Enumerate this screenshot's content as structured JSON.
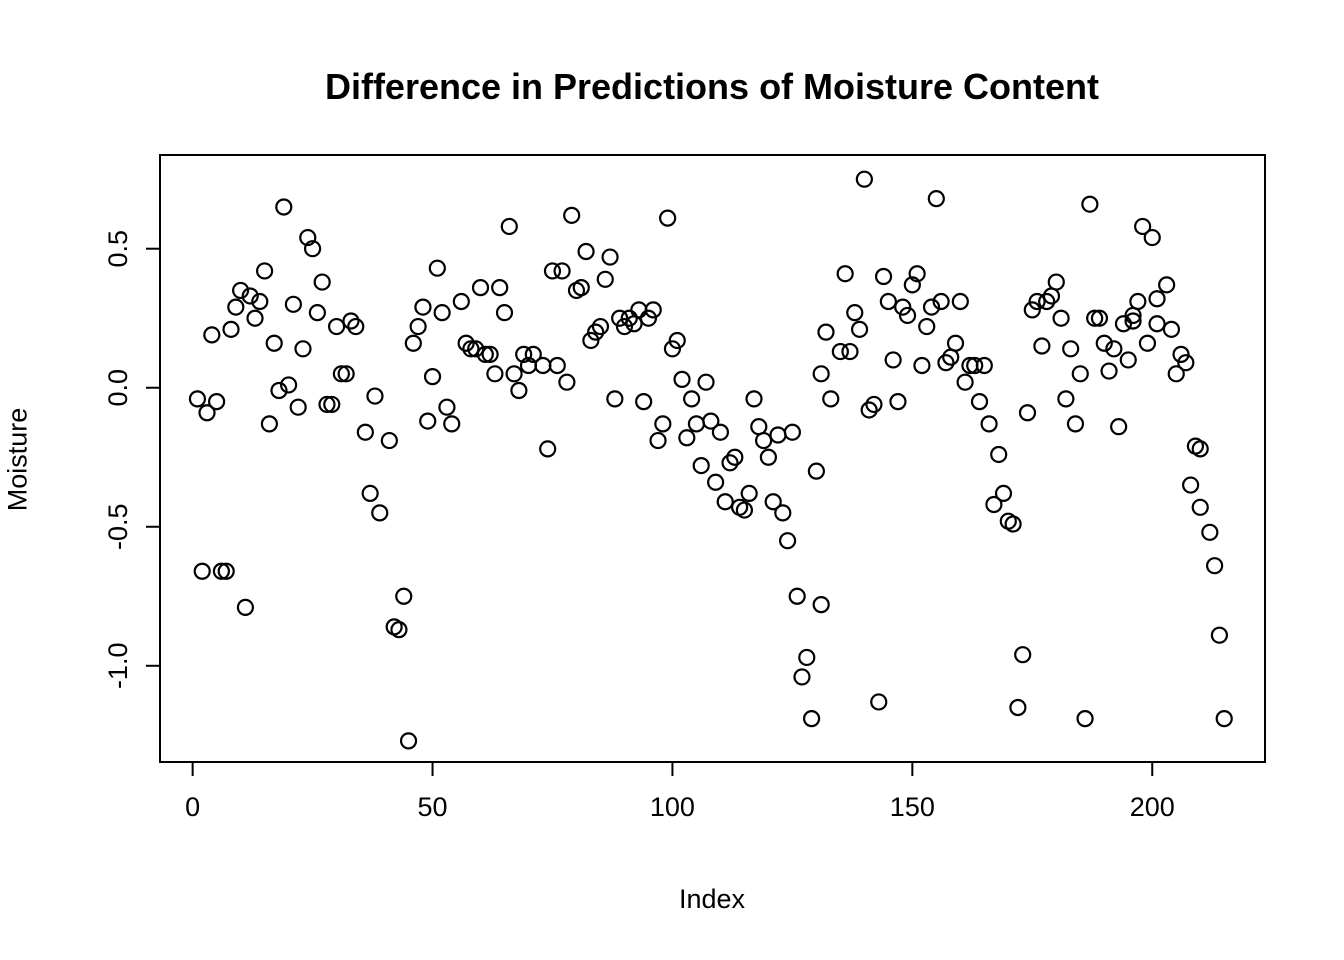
{
  "title": "Difference in Predictions of Moisture Content",
  "chart_data": {
    "type": "scatter",
    "title": "Difference in Predictions of Moisture Content",
    "xlabel": "Index",
    "ylabel": "Moisture",
    "x_ticks": [
      0,
      50,
      100,
      150,
      200
    ],
    "y_ticks": [
      -1.0,
      -0.5,
      0.0,
      0.5
    ],
    "x_tick_labels": [
      "0",
      "50",
      "100",
      "150",
      "200"
    ],
    "y_tick_labels": [
      "-1.0",
      "-0.5",
      "0.0",
      "0.5"
    ],
    "x_domain": [
      -6.8,
      223.5
    ],
    "y_domain": [
      -1.346,
      0.837
    ],
    "grid": "off",
    "legend": "none",
    "marker": {
      "shape": "open-circle",
      "radius": 7.5,
      "stroke_width": 2.2
    },
    "stroke_color": "#000000",
    "background_color": "#ffffff",
    "points": [
      [
        1,
        -0.04
      ],
      [
        2,
        -0.66
      ],
      [
        3,
        -0.09
      ],
      [
        4,
        0.19
      ],
      [
        5,
        -0.05
      ],
      [
        6,
        -0.66
      ],
      [
        7,
        -0.66
      ],
      [
        8,
        0.21
      ],
      [
        9,
        0.29
      ],
      [
        10,
        0.35
      ],
      [
        11,
        -0.79
      ],
      [
        12,
        0.33
      ],
      [
        13,
        0.25
      ],
      [
        14,
        0.31
      ],
      [
        15,
        0.42
      ],
      [
        16,
        -0.13
      ],
      [
        17,
        0.16
      ],
      [
        18,
        -0.01
      ],
      [
        19,
        0.65
      ],
      [
        20,
        0.01
      ],
      [
        21,
        0.3
      ],
      [
        22,
        -0.07
      ],
      [
        23,
        0.14
      ],
      [
        24,
        0.54
      ],
      [
        25,
        0.5
      ],
      [
        26,
        0.27
      ],
      [
        27,
        0.38
      ],
      [
        28,
        -0.06
      ],
      [
        29,
        -0.06
      ],
      [
        30,
        0.22
      ],
      [
        31,
        0.05
      ],
      [
        32,
        0.05
      ],
      [
        33,
        0.24
      ],
      [
        34,
        0.22
      ],
      [
        36,
        -0.16
      ],
      [
        37,
        -0.38
      ],
      [
        38,
        -0.03
      ],
      [
        39,
        -0.45
      ],
      [
        41,
        -0.19
      ],
      [
        42,
        -0.86
      ],
      [
        43,
        -0.87
      ],
      [
        44,
        -0.75
      ],
      [
        45,
        -1.27
      ],
      [
        46,
        0.16
      ],
      [
        47,
        0.22
      ],
      [
        48,
        0.29
      ],
      [
        49,
        -0.12
      ],
      [
        50,
        0.04
      ],
      [
        51,
        0.43
      ],
      [
        52,
        0.27
      ],
      [
        53,
        -0.07
      ],
      [
        54,
        -0.13
      ],
      [
        56,
        0.31
      ],
      [
        57,
        0.16
      ],
      [
        58,
        0.14
      ],
      [
        59,
        0.14
      ],
      [
        60,
        0.36
      ],
      [
        61,
        0.12
      ],
      [
        62,
        0.12
      ],
      [
        63,
        0.05
      ],
      [
        64,
        0.36
      ],
      [
        65,
        0.27
      ],
      [
        66,
        0.58
      ],
      [
        67,
        0.05
      ],
      [
        68,
        -0.01
      ],
      [
        69,
        0.12
      ],
      [
        70,
        0.08
      ],
      [
        71,
        0.12
      ],
      [
        73,
        0.08
      ],
      [
        74,
        -0.22
      ],
      [
        75,
        0.42
      ],
      [
        76,
        0.08
      ],
      [
        77,
        0.42
      ],
      [
        78,
        0.02
      ],
      [
        79,
        0.62
      ],
      [
        80,
        0.35
      ],
      [
        81,
        0.36
      ],
      [
        82,
        0.49
      ],
      [
        83,
        0.17
      ],
      [
        84,
        0.2
      ],
      [
        85,
        0.22
      ],
      [
        86,
        0.39
      ],
      [
        87,
        0.47
      ],
      [
        88,
        -0.04
      ],
      [
        89,
        0.25
      ],
      [
        90,
        0.22
      ],
      [
        91,
        0.25
      ],
      [
        92,
        0.23
      ],
      [
        93,
        0.28
      ],
      [
        94,
        -0.05
      ],
      [
        95,
        0.25
      ],
      [
        96,
        0.28
      ],
      [
        97,
        -0.19
      ],
      [
        98,
        -0.13
      ],
      [
        99,
        0.61
      ],
      [
        100,
        0.14
      ],
      [
        101,
        0.17
      ],
      [
        102,
        0.03
      ],
      [
        103,
        -0.18
      ],
      [
        104,
        -0.04
      ],
      [
        105,
        -0.13
      ],
      [
        106,
        -0.28
      ],
      [
        107,
        0.02
      ],
      [
        108,
        -0.12
      ],
      [
        109,
        -0.34
      ],
      [
        110,
        -0.16
      ],
      [
        111,
        -0.41
      ],
      [
        112,
        -0.27
      ],
      [
        113,
        -0.25
      ],
      [
        114,
        -0.43
      ],
      [
        115,
        -0.44
      ],
      [
        116,
        -0.38
      ],
      [
        117,
        -0.04
      ],
      [
        118,
        -0.14
      ],
      [
        119,
        -0.19
      ],
      [
        120,
        -0.25
      ],
      [
        121,
        -0.41
      ],
      [
        122,
        -0.17
      ],
      [
        123,
        -0.45
      ],
      [
        124,
        -0.55
      ],
      [
        125,
        -0.16
      ],
      [
        126,
        -0.75
      ],
      [
        127,
        -1.04
      ],
      [
        128,
        -0.97
      ],
      [
        129,
        -1.19
      ],
      [
        130,
        -0.3
      ],
      [
        131,
        -0.78
      ],
      [
        131,
        0.05
      ],
      [
        132,
        0.2
      ],
      [
        133,
        -0.04
      ],
      [
        135,
        0.13
      ],
      [
        136,
        0.41
      ],
      [
        137,
        0.13
      ],
      [
        138,
        0.27
      ],
      [
        139,
        0.21
      ],
      [
        140,
        0.75
      ],
      [
        141,
        -0.08
      ],
      [
        142,
        -0.06
      ],
      [
        143,
        -1.13
      ],
      [
        144,
        0.4
      ],
      [
        145,
        0.31
      ],
      [
        146,
        0.1
      ],
      [
        147,
        -0.05
      ],
      [
        148,
        0.29
      ],
      [
        149,
        0.26
      ],
      [
        150,
        0.37
      ],
      [
        151,
        0.41
      ],
      [
        152,
        0.08
      ],
      [
        153,
        0.22
      ],
      [
        154,
        0.29
      ],
      [
        155,
        0.68
      ],
      [
        156,
        0.31
      ],
      [
        157,
        0.09
      ],
      [
        158,
        0.11
      ],
      [
        159,
        0.16
      ],
      [
        160,
        0.31
      ],
      [
        161,
        0.02
      ],
      [
        162,
        0.08
      ],
      [
        163,
        0.08
      ],
      [
        164,
        -0.05
      ],
      [
        165,
        0.08
      ],
      [
        166,
        -0.13
      ],
      [
        167,
        -0.42
      ],
      [
        168,
        -0.24
      ],
      [
        169,
        -0.38
      ],
      [
        170,
        -0.48
      ],
      [
        171,
        -0.49
      ],
      [
        172,
        -1.15
      ],
      [
        173,
        -0.96
      ],
      [
        174,
        -0.09
      ],
      [
        175,
        0.28
      ],
      [
        176,
        0.31
      ],
      [
        177,
        0.15
      ],
      [
        178,
        0.31
      ],
      [
        179,
        0.33
      ],
      [
        180,
        0.38
      ],
      [
        181,
        0.25
      ],
      [
        182,
        -0.04
      ],
      [
        183,
        0.14
      ],
      [
        184,
        -0.13
      ],
      [
        185,
        0.05
      ],
      [
        186,
        -1.19
      ],
      [
        187,
        0.66
      ],
      [
        188,
        0.25
      ],
      [
        189,
        0.25
      ],
      [
        190,
        0.16
      ],
      [
        191,
        0.06
      ],
      [
        192,
        0.14
      ],
      [
        193,
        -0.14
      ],
      [
        194,
        0.23
      ],
      [
        195,
        0.1
      ],
      [
        196,
        0.24
      ],
      [
        196,
        0.26
      ],
      [
        197,
        0.31
      ],
      [
        198,
        0.58
      ],
      [
        199,
        0.16
      ],
      [
        200,
        0.54
      ],
      [
        201,
        0.23
      ],
      [
        201,
        0.32
      ],
      [
        203,
        0.37
      ],
      [
        204,
        0.21
      ],
      [
        205,
        0.05
      ],
      [
        206,
        0.12
      ],
      [
        207,
        0.09
      ],
      [
        208,
        -0.35
      ],
      [
        209,
        -0.21
      ],
      [
        210,
        -0.43
      ],
      [
        210,
        -0.22
      ],
      [
        212,
        -0.52
      ],
      [
        213,
        -0.64
      ],
      [
        214,
        -0.89
      ],
      [
        215,
        -1.19
      ]
    ]
  }
}
